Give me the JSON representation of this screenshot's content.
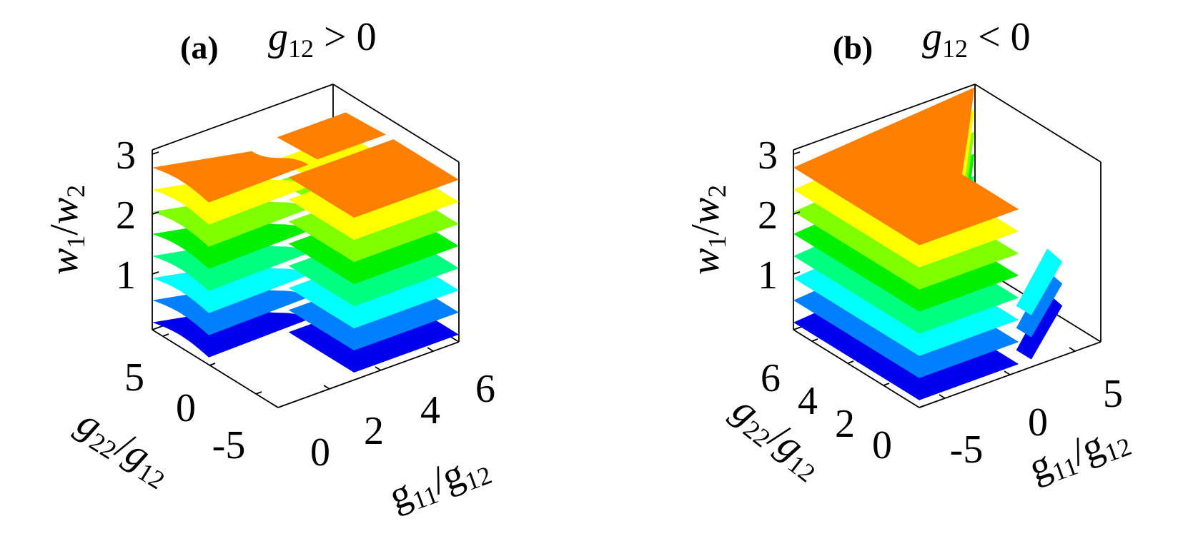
{
  "colors": {
    "layers": [
      "#0000ee",
      "#0080ff",
      "#00ffff",
      "#00ff80",
      "#00f000",
      "#80ff00",
      "#ffff00",
      "#ff8000"
    ],
    "axis": "#000000"
  },
  "chart_data": [
    {
      "type": "surface3d",
      "panel_label": "(a)",
      "title": {
        "base": "g",
        "sub": "12",
        "rel": "> 0"
      },
      "zlabel": {
        "a": "w",
        "a_sub": "1",
        "slash": "/",
        "b": "w",
        "b_sub": "2"
      },
      "xlabel": {
        "a": "g",
        "a_sub": "11",
        "slash": "/",
        "b": "g",
        "b_sub": "12"
      },
      "ylabel": {
        "a": "g",
        "a_sub": "22",
        "slash": "/",
        "b": "g",
        "b_sub": "12"
      },
      "z_ticks": [
        "1",
        "2",
        "3"
      ],
      "x_ticks": [
        "0",
        "2",
        "4",
        "6"
      ],
      "y_ticks": [
        "5",
        "0",
        "-5"
      ],
      "xlim": [
        0,
        7
      ],
      "ylim": [
        -7,
        7
      ],
      "zlim": [
        0,
        3
      ],
      "surfaces": [
        {
          "level": 0.125,
          "color": "#0000ee",
          "region": "g11/g12 >= 0 and g22/g12 >= 0"
        },
        {
          "level": 0.5,
          "color": "#0080ff"
        },
        {
          "level": 0.875,
          "color": "#00ffff"
        },
        {
          "level": 1.25,
          "color": "#00ff80"
        },
        {
          "level": 1.625,
          "color": "#00f000"
        },
        {
          "level": 2.0,
          "color": "#80ff00"
        },
        {
          "level": 2.375,
          "color": "#ffff00"
        },
        {
          "level": 2.75,
          "color": "#ff8000"
        }
      ]
    },
    {
      "type": "surface3d",
      "panel_label": "(b)",
      "title": {
        "base": "g",
        "sub": "12",
        "rel": "< 0"
      },
      "zlabel": {
        "a": "w",
        "a_sub": "1",
        "slash": "/",
        "b": "w",
        "b_sub": "2"
      },
      "xlabel": {
        "a": "g",
        "a_sub": "11",
        "slash": "/",
        "b": "g",
        "b_sub": "12"
      },
      "ylabel": {
        "a": "g",
        "a_sub": "22",
        "slash": "/",
        "b": "g",
        "b_sub": "12"
      },
      "z_ticks": [
        "1",
        "2",
        "3"
      ],
      "x_ticks": [
        "-5",
        "0",
        "5"
      ],
      "y_ticks": [
        "6",
        "4",
        "2",
        "0"
      ],
      "xlim": [
        -7,
        7
      ],
      "ylim": [
        0,
        7
      ],
      "zlim": [
        0,
        3
      ],
      "surfaces": [
        {
          "level": 0.125,
          "color": "#0000ee"
        },
        {
          "level": 0.5,
          "color": "#0080ff"
        },
        {
          "level": 0.875,
          "color": "#00ffff"
        },
        {
          "level": 1.25,
          "color": "#00ff80"
        },
        {
          "level": 1.625,
          "color": "#00f000"
        },
        {
          "level": 2.0,
          "color": "#80ff00"
        },
        {
          "level": 2.375,
          "color": "#ffff00"
        },
        {
          "level": 2.75,
          "color": "#ff8000"
        }
      ]
    }
  ]
}
